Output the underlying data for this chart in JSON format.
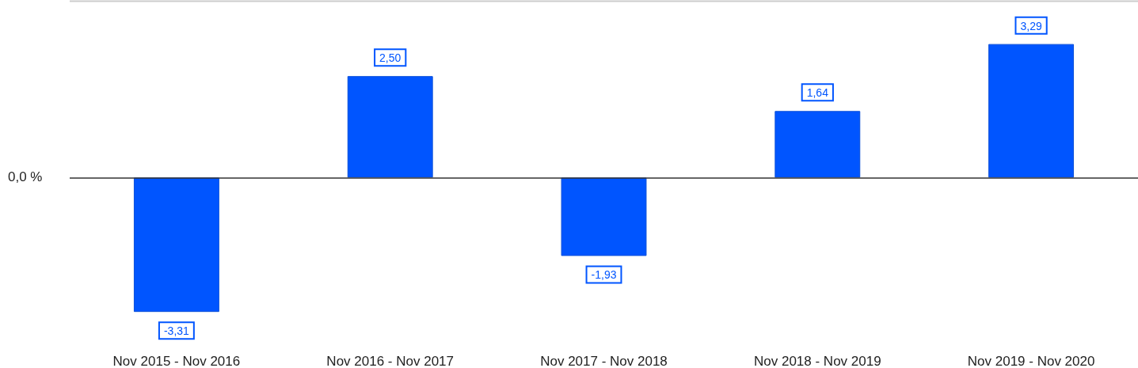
{
  "chart_data": {
    "type": "bar",
    "categories": [
      "Nov 2015 - Nov 2016",
      "Nov 2016 - Nov 2017",
      "Nov 2017 - Nov 2018",
      "Nov 2018 - Nov 2019",
      "Nov 2019 - Nov 2020"
    ],
    "values": [
      -3.31,
      2.5,
      -1.93,
      1.64,
      3.29
    ],
    "value_labels": [
      "-3,31",
      "2,50",
      "-1,93",
      "1,64",
      "3,29"
    ],
    "color": "#0055ff",
    "annotations": [
      "0,0 %"
    ]
  }
}
